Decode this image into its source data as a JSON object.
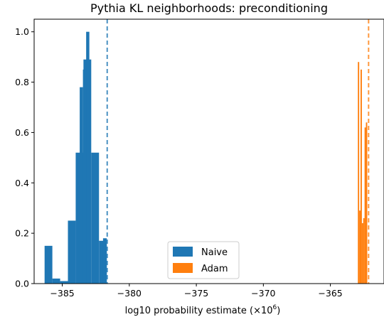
{
  "chart_data": {
    "type": "bar",
    "title": "Pythia KL neighborhoods: preconditioning",
    "xlabel": "log10 probability estimate (×10",
    "xlabel_exp": "6",
    "xlabel_tail": ")",
    "ylabel": "",
    "xlim": [
      -387.1,
      -361.0
    ],
    "ylim": [
      0,
      1.05
    ],
    "xticks": [
      -385,
      -380,
      -375,
      -370,
      -365
    ],
    "xtick_labels": [
      "−385",
      "−380",
      "−375",
      "−370",
      "−365"
    ],
    "yticks": [
      0.0,
      0.2,
      0.4,
      0.6,
      0.8,
      1.0
    ],
    "ytick_labels": [
      "0.0",
      "0.2",
      "0.4",
      "0.6",
      "0.8",
      "1.0"
    ],
    "grid": false,
    "legend_position": "bottom-center",
    "series": [
      {
        "name": "Naive",
        "color": "#1f77b4",
        "bins": [
          {
            "x0": -386.32,
            "x1": -385.74,
            "y": 0.15
          },
          {
            "x0": -385.74,
            "x1": -385.16,
            "y": 0.02
          },
          {
            "x0": -385.16,
            "x1": -384.58,
            "y": 0.01
          },
          {
            "x0": -384.58,
            "x1": -384.0,
            "y": 0.25
          },
          {
            "x0": -384.0,
            "x1": -383.42,
            "y": 0.52
          },
          {
            "x0": -383.42,
            "x1": -382.84,
            "y": 0.89
          },
          {
            "x0": -382.84,
            "x1": -382.26,
            "y": 0.52
          },
          {
            "x0": -382.26,
            "x1": -381.68,
            "y": 0.17
          }
        ],
        "fine_bins": [
          {
            "x0": -383.7,
            "x1": -383.46,
            "y": 0.78
          },
          {
            "x0": -383.46,
            "x1": -383.22,
            "y": 0.85
          },
          {
            "x0": -383.22,
            "x1": -382.98,
            "y": 1.0
          },
          {
            "x0": -381.96,
            "x1": -381.68,
            "y": 0.18
          }
        ],
        "mean_line": -381.65
      },
      {
        "name": "Adam",
        "color": "#ff7f0e",
        "bins": [
          {
            "x0": -362.95,
            "x1": -362.85,
            "y": 0.88
          },
          {
            "x0": -362.85,
            "x1": -362.75,
            "y": 0.29
          },
          {
            "x0": -362.75,
            "x1": -362.65,
            "y": 0.85
          },
          {
            "x0": -362.65,
            "x1": -362.55,
            "y": 0.24
          },
          {
            "x0": -362.55,
            "x1": -362.45,
            "y": 0.26
          },
          {
            "x0": -362.45,
            "x1": -362.35,
            "y": 0.62
          },
          {
            "x0": -362.35,
            "x1": -362.25,
            "y": 0.64
          }
        ],
        "mean_line": -362.15
      }
    ],
    "legend": [
      {
        "label": "Naive",
        "color": "#1f77b4"
      },
      {
        "label": "Adam",
        "color": "#ff7f0e"
      }
    ]
  }
}
